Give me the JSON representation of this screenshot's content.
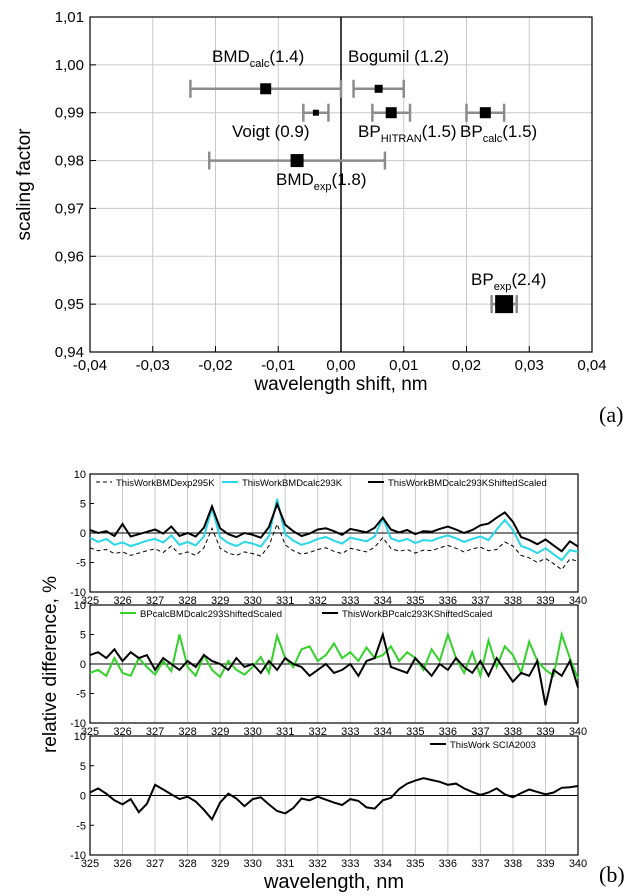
{
  "chart_data": [
    {
      "type": "scatter",
      "panel_label": "(a)",
      "xlabel": "wavelength shift, nm",
      "ylabel": "scaling factor",
      "xlim": [
        -0.04,
        0.04
      ],
      "ylim": [
        0.94,
        1.01
      ],
      "xticks": [
        "-0,04",
        "-0,03",
        "-0,02",
        "-0,01",
        "0,00",
        "0,01",
        "0,02",
        "0,03",
        "0,04"
      ],
      "yticks": [
        "0,94",
        "0,95",
        "0,96",
        "0,97",
        "0,98",
        "0,99",
        "1,00",
        "1,01"
      ],
      "grid": true,
      "points": [
        {
          "label": "BMD",
          "sub": "calc",
          "value": "(1.4)",
          "x": -0.012,
          "y": 0.995,
          "xerr_lo": -0.024,
          "xerr_hi": 0.0,
          "size": "medium"
        },
        {
          "label": "Bogumil (1.2)",
          "sub": "",
          "value": "",
          "x": 0.006,
          "y": 0.995,
          "xerr_lo": 0.002,
          "xerr_hi": 0.01,
          "size": "small"
        },
        {
          "label": "Voigt (0.9)",
          "sub": "",
          "value": "",
          "x": -0.004,
          "y": 0.99,
          "xerr_lo": -0.006,
          "xerr_hi": -0.002,
          "size": "tiny"
        },
        {
          "label": "BP",
          "sub": "HITRAN",
          "value": "(1.5)",
          "x": 0.008,
          "y": 0.99,
          "xerr_lo": 0.005,
          "xerr_hi": 0.011,
          "size": "medium"
        },
        {
          "label": "BP",
          "sub": "calc",
          "value": "(1.5)",
          "x": 0.023,
          "y": 0.99,
          "xerr_lo": 0.02,
          "xerr_hi": 0.026,
          "size": "medium"
        },
        {
          "label": "BMD",
          "sub": "exp",
          "value": "(1.8)",
          "x": -0.007,
          "y": 0.98,
          "xerr_lo": -0.021,
          "xerr_hi": 0.007,
          "size": "large"
        },
        {
          "label": "BP",
          "sub": "exp",
          "value": "(2.4)",
          "x": 0.026,
          "y": 0.95,
          "xerr_lo": 0.024,
          "xerr_hi": 0.028,
          "size": "xlarge"
        }
      ]
    },
    {
      "type": "line",
      "panel_label": "(b)",
      "xlabel": "wavelength, nm",
      "ylabel": "relative difference, %",
      "xlim": [
        325,
        340
      ],
      "ylim": [
        -10,
        10
      ],
      "xticks": [
        "325",
        "326",
        "327",
        "328",
        "329",
        "330",
        "331",
        "332",
        "333",
        "334",
        "335",
        "336",
        "337",
        "338",
        "339",
        "340"
      ],
      "yticks": [
        "-10",
        "-5",
        "0",
        "5",
        "10"
      ],
      "grid": true,
      "subpanels": [
        {
          "series": [
            {
              "name": "ThisWorkBMDexp295K",
              "color": "#000000",
              "style": "dashed",
              "values": [
                -2.5,
                -3,
                -2.8,
                -3.5,
                -3.2,
                -3.8,
                -3.4,
                -3,
                -2.7,
                -3.3,
                -2.2,
                -3.6,
                -3.2,
                -3.8,
                -2.5,
                0.8,
                -2.6,
                -3.4,
                -3.8,
                -3.2,
                -3.5,
                -3.9,
                -2.2,
                1.5,
                -2,
                -3,
                -3.6,
                -3.3,
                -2.8,
                -2.5,
                -3.1,
                -3.5,
                -2.6,
                -2.9,
                -3.2,
                -2.4,
                -0.8,
                -2.6,
                -3.1,
                -2.8,
                -3.4,
                -2.9,
                -3,
                -2.5,
                -2.1,
                -2.6,
                -3.2,
                -2.7,
                -2.4,
                -3,
                -2.8,
                -1.5,
                -2.2,
                -3.8,
                -4.2,
                -5,
                -4.3,
                -5.2,
                -6.2,
                -4.4,
                -4.8
              ]
            },
            {
              "name": "ThisWorkBMDcalc293K",
              "color": "#29d8e8",
              "style": "solid",
              "values": [
                -0.8,
                -1.5,
                -1,
                -2,
                -1.6,
                -2.2,
                -1.8,
                -1.3,
                -1,
                -1.6,
                -0.4,
                -2,
                -1.5,
                -2.1,
                -0.6,
                4.2,
                -0.7,
                -1.7,
                -2.2,
                -1.5,
                -1.8,
                -2.3,
                -0.5,
                5.8,
                -0.2,
                -1.3,
                -2,
                -1.6,
                -1,
                -0.7,
                -1.3,
                -1.8,
                -0.8,
                -1.1,
                -1.4,
                -0.6,
                2.6,
                -0.9,
                -1.4,
                -1,
                -1.7,
                -1.2,
                -1.3,
                -0.8,
                -0.4,
                -0.9,
                -1.5,
                -1,
                -0.6,
                -1.2,
                0.6,
                2.2,
                0.5,
                -2.2,
                -2.7,
                -3.4,
                -2.6,
                -3.6,
                -4.6,
                -2.9,
                -3.2
              ]
            },
            {
              "name": "ThisWorkBMDcalc293KShiftedScaled",
              "color": "#000000",
              "style": "solid",
              "values": [
                0.5,
                0,
                0.3,
                -0.5,
                1.5,
                -0.6,
                -0.2,
                0.2,
                0.6,
                -0.1,
                1.1,
                -0.5,
                0,
                -0.6,
                0.9,
                4.5,
                0.8,
                -0.2,
                -0.7,
                0,
                -0.3,
                -0.8,
                1,
                4.9,
                1.4,
                0.3,
                -0.5,
                -0.1,
                0.6,
                0.8,
                0.3,
                -0.3,
                0.7,
                0.4,
                0.1,
                0.9,
                2.6,
                0.6,
                0.1,
                0.5,
                -0.2,
                0.3,
                0.2,
                0.7,
                1.1,
                0.6,
                0,
                0.5,
                1.3,
                1.6,
                2.6,
                3.5,
                1.9,
                -0.7,
                -1.2,
                -1.9,
                -1.1,
                -2.1,
                -3.1,
                -1.4,
                -2.3
              ]
            }
          ]
        },
        {
          "series": [
            {
              "name": "BPcalcBMDcalc293ShiftedScaled",
              "color": "#33d12a",
              "style": "solid",
              "values": [
                -1.5,
                -1,
                -2,
                1,
                -1.5,
                -2,
                1,
                -0.5,
                -1.8,
                0.5,
                -1.2,
                5,
                -0.5,
                -2,
                1.5,
                -1,
                -2.2,
                0.5,
                -1,
                -1.8,
                -0.5,
                1.2,
                -1.5,
                4.8,
                1,
                -0.5,
                2.5,
                3,
                0.5,
                1.5,
                3.5,
                1,
                2,
                0.5,
                2.8,
                1,
                1.5,
                3,
                0.5,
                2,
                1,
                -1,
                2.5,
                0.5,
                5,
                1,
                -1.5,
                2,
                -2,
                4,
                -0.5,
                3,
                1.5,
                -1.5,
                3.8,
                0.5,
                -1,
                -2,
                5,
                1,
                -2.5
              ]
            },
            {
              "name": "ThisWorkBPcalc293KShiftedScaled",
              "color": "#000000",
              "style": "solid",
              "values": [
                1.5,
                2,
                1,
                2.5,
                0.5,
                2,
                1,
                1.5,
                -1,
                1,
                0,
                -1,
                0.5,
                -0.5,
                1.5,
                0.5,
                0,
                -1,
                1,
                -0.5,
                0,
                -1.5,
                0.5,
                -1,
                1,
                0,
                -0.5,
                -2,
                -1,
                0,
                -1.5,
                -1,
                0,
                -2,
                0.5,
                1,
                5,
                -0.5,
                -1,
                -1.5,
                1,
                -0.5,
                -2,
                0,
                -1,
                1,
                -0.5,
                -1.5,
                0.5,
                -2,
                1,
                -1,
                -3,
                -1.5,
                -2,
                0.5,
                -7,
                -1,
                -2,
                0.5,
                -4
              ]
            }
          ]
        },
        {
          "series": [
            {
              "name": "ThisWork SCIA2003",
              "color": "#000000",
              "style": "solid",
              "values": [
                0.5,
                1.2,
                0.3,
                -0.8,
                -1.5,
                -0.6,
                -2.8,
                -1.4,
                1.8,
                1,
                0.2,
                -0.6,
                -0.2,
                -1,
                -2.4,
                -4,
                -1.2,
                0.3,
                -0.5,
                -1.8,
                -0.6,
                -0.3,
                -1.5,
                -2.6,
                -3,
                -2.1,
                -0.5,
                -0.8,
                -0.2,
                -0.7,
                -1.2,
                -1.6,
                -0.6,
                -0.9,
                -2,
                -2.2,
                -0.8,
                -0.4,
                1.1,
                2,
                2.5,
                2.9,
                2.6,
                2.3,
                1.8,
                2,
                1.2,
                0.6,
                0.1,
                0.5,
                1.2,
                0.2,
                -0.3,
                0.4,
                1,
                0.6,
                0.2,
                0.5,
                1.3,
                1.4,
                1.6
              ]
            }
          ]
        }
      ]
    }
  ]
}
